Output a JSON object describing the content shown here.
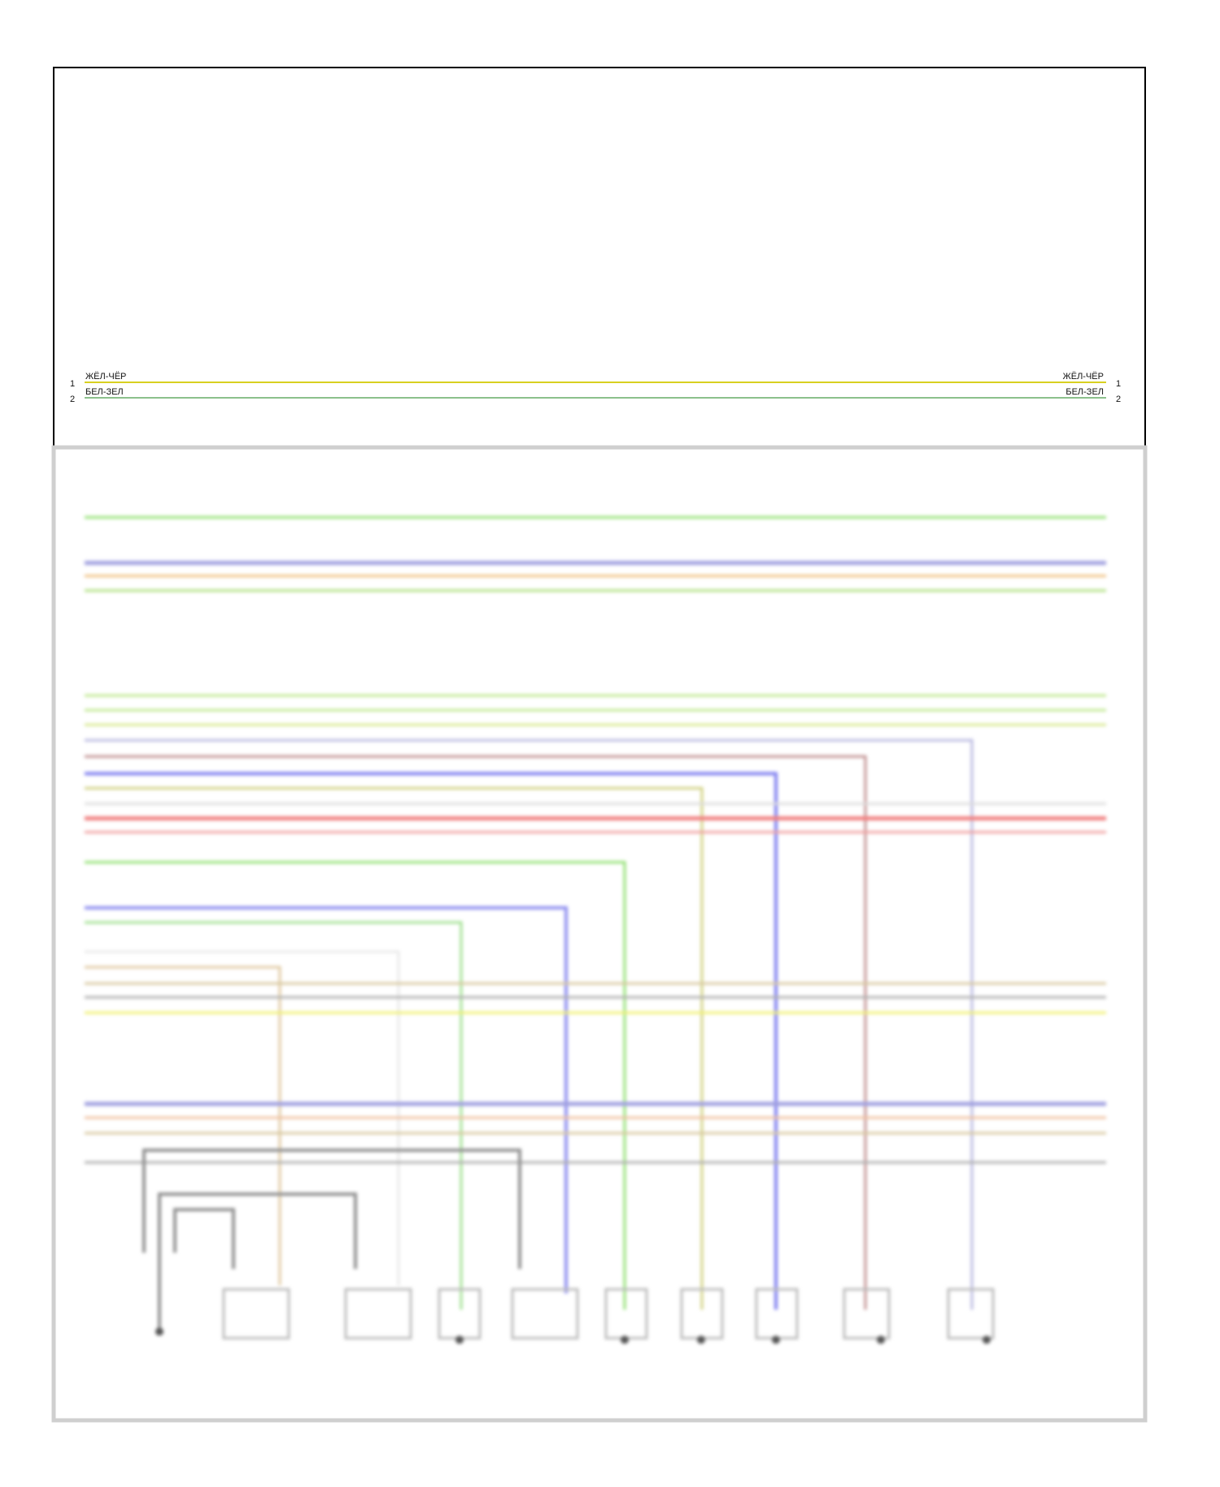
{
  "wires_readable": [
    {
      "pin": "1",
      "color_label": "ЖЁЛ-ЧЁР",
      "color": "#d8d020"
    },
    {
      "pin": "2",
      "color_label": "БЕЛ-ЗЕЛ",
      "color": "#8cc08c"
    }
  ],
  "colors": {
    "frame": "#000000",
    "lower_frame": "#c8c8c8",
    "green": "#90e070",
    "purple": "#a0a0e0",
    "orange": "#f0c080",
    "red": "#f08080",
    "blue": "#8080f0",
    "olive": "#d0d080",
    "tan": "#d8c8a0",
    "gray": "#a0a0a0",
    "yellow": "#f0f070",
    "brown": "#c08080"
  }
}
